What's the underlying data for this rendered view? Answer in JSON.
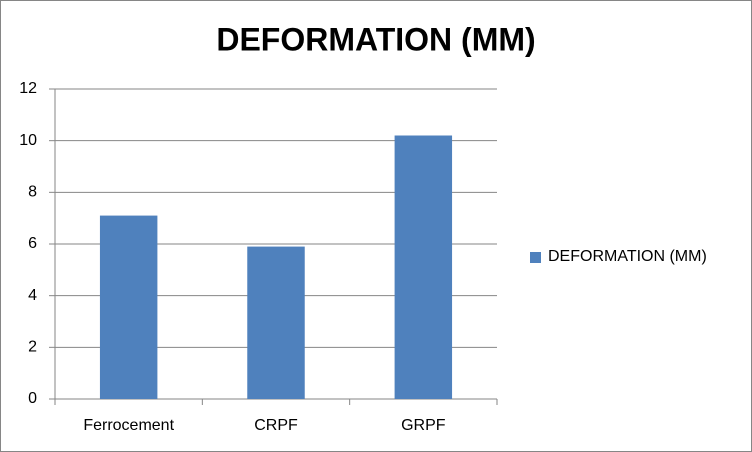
{
  "chart_data": {
    "type": "bar",
    "title": "DEFORMATION (MM)",
    "categories": [
      "Ferrocement",
      "CRPF",
      "GRPF"
    ],
    "series": [
      {
        "name": "DEFORMATION (MM)",
        "color": "#4f81bd",
        "values": [
          7.1,
          5.9,
          10.2
        ]
      }
    ],
    "ylim": [
      0,
      12
    ],
    "yticks": [
      0,
      2,
      4,
      6,
      8,
      10,
      12
    ],
    "grid": true,
    "legend": "right"
  }
}
